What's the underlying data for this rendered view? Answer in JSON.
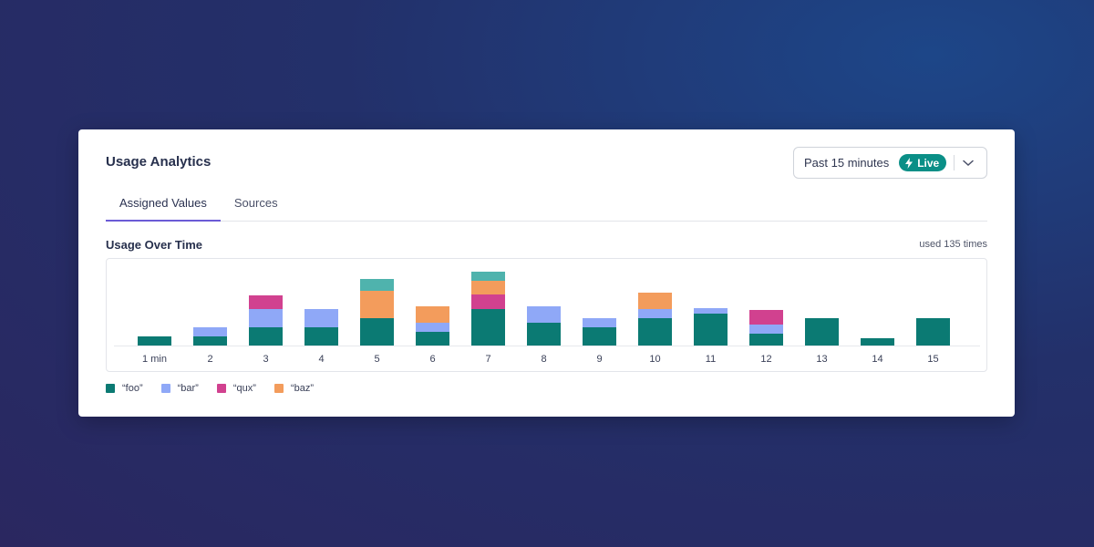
{
  "card": {
    "title": "Usage Analytics",
    "range_label": "Past 15 minutes",
    "live_label": "Live",
    "tabs": [
      "Assigned Values",
      "Sources"
    ],
    "section_title": "Usage Over Time",
    "usage_text": "used 135 times"
  },
  "colors": {
    "foo": "#0b7a73",
    "bar": "#8fa8f7",
    "qux": "#d1418f",
    "baz": "#f39c5c",
    "extra": "#4fb3ad",
    "accent": "#6b5bd6",
    "live": "#0a8f87"
  },
  "chart_data": {
    "type": "bar",
    "stacked": true,
    "title": "Usage Over Time",
    "categories": [
      "1 min",
      "2",
      "3",
      "4",
      "5",
      "6",
      "7",
      "8",
      "9",
      "10",
      "11",
      "12",
      "13",
      "14",
      "15"
    ],
    "series": [
      {
        "name": "“foo”",
        "key": "foo",
        "values": [
          1,
          1,
          2,
          2,
          3,
          1.5,
          4,
          2.5,
          2,
          3,
          3.5,
          1.3,
          3,
          0.8,
          3
        ]
      },
      {
        "name": "“bar”",
        "key": "bar",
        "values": [
          0,
          1,
          2,
          2,
          0,
          1,
          0,
          1.8,
          1,
          1,
          0.6,
          1,
          0,
          0,
          0
        ]
      },
      {
        "name": "“qux”",
        "key": "qux",
        "values": [
          0,
          0,
          1.5,
          0,
          0,
          0,
          1.6,
          0,
          0,
          0,
          0,
          1.6,
          0,
          0,
          0
        ]
      },
      {
        "name": "“baz”",
        "key": "baz",
        "values": [
          0,
          0,
          0,
          0,
          3,
          1.8,
          1.5,
          0,
          0,
          1.8,
          0,
          0,
          0,
          0,
          0
        ]
      },
      {
        "name": "",
        "key": "extra",
        "values": [
          0,
          0,
          0,
          0,
          1.3,
          0,
          1,
          0,
          0,
          0,
          0,
          0,
          0,
          0,
          0
        ]
      }
    ],
    "legend": [
      "“foo”",
      "“bar”",
      "“qux”",
      "“baz”"
    ],
    "ylim": [
      0,
      8.5
    ],
    "xlabel": "",
    "ylabel": ""
  }
}
